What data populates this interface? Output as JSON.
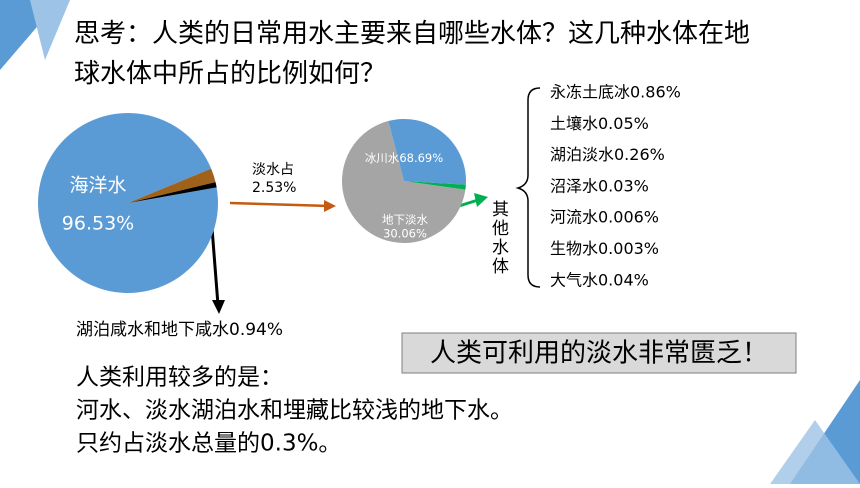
{
  "title": "思考：人类的日常用水主要来自哪些水体？这几种水体在地球水体中所占的比例如何？",
  "chart_data": [
    {
      "type": "pie",
      "categories": [
        "海洋水",
        "淡水占",
        "湖泊咸水和地下咸水"
      ],
      "values": [
        96.53,
        2.53,
        0.94
      ],
      "value_labels": [
        "96.53%",
        "2.53%",
        "0.94%"
      ],
      "colors": [
        "#5b9bd5",
        "#a0611a",
        "#000000"
      ]
    },
    {
      "type": "pie",
      "categories": [
        "冰川水",
        "地下淡水",
        "其他水体"
      ],
      "values": [
        68.69,
        30.06,
        1.25
      ],
      "value_labels": [
        "68.69%",
        "30.06%",
        null
      ],
      "colors": [
        "#a5a5a5",
        "#5b9bd5",
        "#00b050"
      ]
    }
  ],
  "other_water": [
    "永冻土底冰0.86%",
    "土壤水0.05%",
    "湖泊淡水0.26%",
    "沼泽水0.03%",
    "河流水0.006%",
    "生物水0.003%",
    "大气水0.04%"
  ],
  "callout": "人类可利用的淡水非常匮乏！",
  "conclusion": [
    "人类利用较多的是：",
    "河水、淡水湖泊水和埋藏比较浅的地下水。",
    "只约占淡水总量的0.3%。"
  ]
}
